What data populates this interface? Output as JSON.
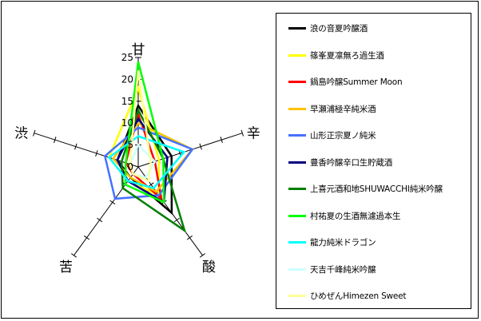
{
  "chart_data": {
    "type": "radar",
    "axes": [
      "甘",
      "辛",
      "酸",
      "苦",
      "渋"
    ],
    "rlim": [
      0,
      25
    ],
    "ticks": [
      "25",
      "20",
      "15",
      "10",
      "5",
      "0"
    ],
    "legend_position": "right",
    "series": [
      {
        "name": "浪の音夏吟醸酒",
        "color": "#000000",
        "values": [
          14,
          8,
          13,
          3,
          5
        ]
      },
      {
        "name": "篠峯夏凛無ろ過生酒",
        "color": "#ffff00",
        "values": [
          18,
          5,
          8,
          4,
          7
        ]
      },
      {
        "name": "鍋島吟醸Summer Moon",
        "color": "#ff0000",
        "values": [
          12,
          4,
          9,
          2,
          3
        ]
      },
      {
        "name": "早瀬浦極辛純米酒",
        "color": "#ffc000",
        "values": [
          10,
          13,
          7,
          3,
          6
        ]
      },
      {
        "name": "山形正宗夏ノ純米",
        "color": "#4472ff",
        "values": [
          9,
          13,
          8,
          9,
          8
        ]
      },
      {
        "name": "豊香吟醸辛口生貯蔵酒",
        "color": "#00007f",
        "values": [
          11,
          7,
          10,
          4,
          5
        ]
      },
      {
        "name": "上喜元酒和地SHUWACCHI純米吟醸",
        "color": "#007f00",
        "values": [
          13,
          6,
          18,
          6,
          4
        ]
      },
      {
        "name": "村祐夏の生酒無濾過本生",
        "color": "#00ff00",
        "values": [
          24,
          6,
          10,
          5,
          3
        ]
      },
      {
        "name": "龍力純米ドラゴン",
        "color": "#00ffff",
        "values": [
          7,
          11,
          6,
          4,
          7
        ]
      },
      {
        "name": "天吉千峰純米吟醸",
        "color": "#ccffff",
        "values": [
          5,
          4,
          3,
          2,
          2
        ]
      },
      {
        "name": "ひめぜんHimezen Sweet",
        "color": "#ffff99",
        "values": [
          22,
          3,
          4,
          2,
          2
        ]
      }
    ]
  }
}
